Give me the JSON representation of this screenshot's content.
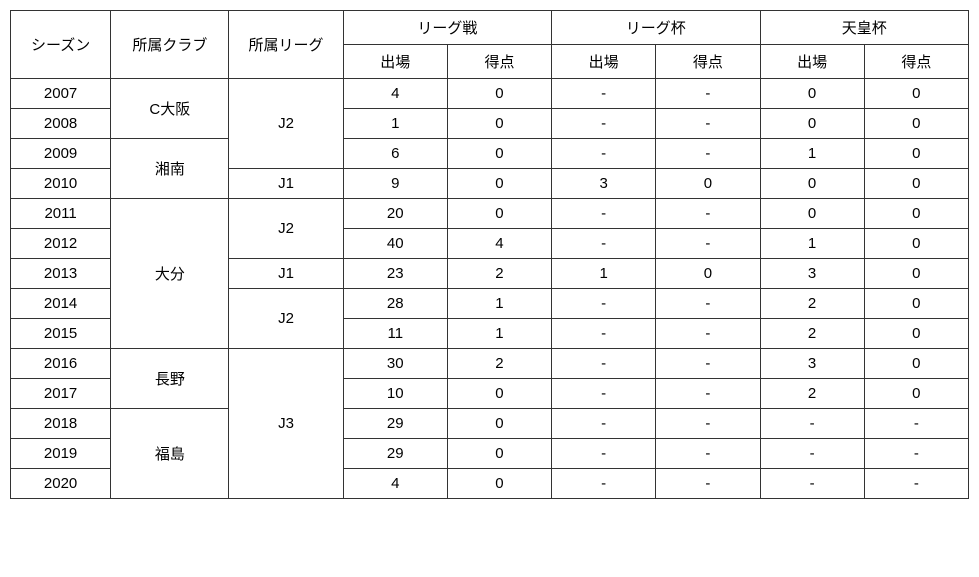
{
  "headers": {
    "season": "シーズン",
    "club": "所属クラブ",
    "league": "所属リーグ",
    "group_league": "リーグ戦",
    "group_leaguecup": "リーグ杯",
    "group_emperor": "天皇杯",
    "apps": "出場",
    "goals": "得点"
  },
  "clubs": {
    "c_osaka": "C大阪",
    "shonan": "湘南",
    "oita": "大分",
    "nagano": "長野",
    "fukushima": "福島"
  },
  "leagues": {
    "j1": "J1",
    "j2": "J2",
    "j3": "J3"
  },
  "rows": [
    {
      "season": "2007",
      "la": "4",
      "lg": "0",
      "ca": "-",
      "cg": "-",
      "ea": "0",
      "eg": "0"
    },
    {
      "season": "2008",
      "la": "1",
      "lg": "0",
      "ca": "-",
      "cg": "-",
      "ea": "0",
      "eg": "0"
    },
    {
      "season": "2009",
      "la": "6",
      "lg": "0",
      "ca": "-",
      "cg": "-",
      "ea": "1",
      "eg": "0"
    },
    {
      "season": "2010",
      "la": "9",
      "lg": "0",
      "ca": "3",
      "cg": "0",
      "ea": "0",
      "eg": "0"
    },
    {
      "season": "2011",
      "la": "20",
      "lg": "0",
      "ca": "-",
      "cg": "-",
      "ea": "0",
      "eg": "0"
    },
    {
      "season": "2012",
      "la": "40",
      "lg": "4",
      "ca": "-",
      "cg": "-",
      "ea": "1",
      "eg": "0"
    },
    {
      "season": "2013",
      "la": "23",
      "lg": "2",
      "ca": "1",
      "cg": "0",
      "ea": "3",
      "eg": "0"
    },
    {
      "season": "2014",
      "la": "28",
      "lg": "1",
      "ca": "-",
      "cg": "-",
      "ea": "2",
      "eg": "0"
    },
    {
      "season": "2015",
      "la": "11",
      "lg": "1",
      "ca": "-",
      "cg": "-",
      "ea": "2",
      "eg": "0"
    },
    {
      "season": "2016",
      "la": "30",
      "lg": "2",
      "ca": "-",
      "cg": "-",
      "ea": "3",
      "eg": "0"
    },
    {
      "season": "2017",
      "la": "10",
      "lg": "0",
      "ca": "-",
      "cg": "-",
      "ea": "2",
      "eg": "0"
    },
    {
      "season": "2018",
      "la": "29",
      "lg": "0",
      "ca": "-",
      "cg": "-",
      "ea": "-",
      "eg": "-"
    },
    {
      "season": "2019",
      "la": "29",
      "lg": "0",
      "ca": "-",
      "cg": "-",
      "ea": "-",
      "eg": "-"
    },
    {
      "season": "2020",
      "la": "4",
      "lg": "0",
      "ca": "-",
      "cg": "-",
      "ea": "-",
      "eg": "-"
    }
  ],
  "colors": {
    "border": "#333333",
    "text": "#000000",
    "background": "#ffffff"
  },
  "font": {
    "size_pt": 11,
    "family": "Yu Gothic"
  }
}
